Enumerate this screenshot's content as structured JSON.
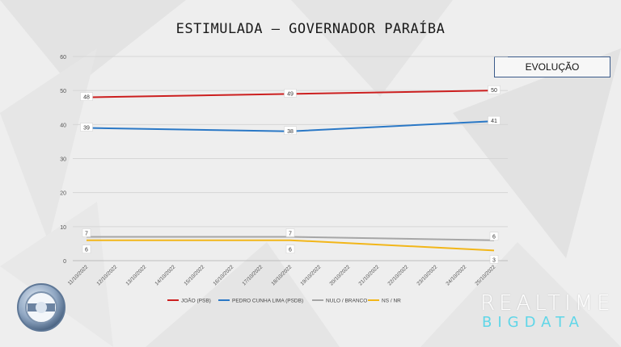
{
  "title": "ESTIMULADA – GOVERNADOR PARAÍBA",
  "badge": "EVOLUÇÃO",
  "brand": {
    "line1": "REALTIME",
    "line2": "BIGDATA"
  },
  "logo_icon": "record-tv-logo-icon",
  "chart_data": {
    "type": "line",
    "x": [
      "11/10/2022",
      "12/10/2022",
      "13/10/2022",
      "14/10/2022",
      "15/10/2022",
      "16/10/2022",
      "17/10/2022",
      "18/10/2022",
      "19/10/2022",
      "20/10/2022",
      "21/10/2022",
      "22/10/2022",
      "23/10/2022",
      "24/10/2022",
      "25/10/2022"
    ],
    "ylim": [
      0,
      60
    ],
    "yticks": [
      "0",
      "10",
      "20",
      "30",
      "40",
      "50",
      "60"
    ],
    "grid": true,
    "legend": "bottom",
    "series": [
      {
        "name": "JOÃO (PSB)",
        "color": "#cc1f1f",
        "points": [
          [
            0,
            48
          ],
          [
            7,
            49
          ],
          [
            14,
            50
          ]
        ],
        "labels": [
          "48",
          "49",
          "50"
        ],
        "label_pos": "center"
      },
      {
        "name": "PEDRO CUNHA LIMA (PSDB)",
        "color": "#2a78c6",
        "points": [
          [
            0,
            39
          ],
          [
            7,
            38
          ],
          [
            14,
            41
          ]
        ],
        "labels": [
          "39",
          "38",
          "41"
        ],
        "label_pos": "center"
      },
      {
        "name": "NULO / BRANCO",
        "color": "#a6a6a6",
        "points": [
          [
            0,
            7
          ],
          [
            7,
            7
          ],
          [
            14,
            6
          ]
        ],
        "labels": [
          "7",
          "7",
          "6"
        ],
        "label_pos": "above"
      },
      {
        "name": "NS / NR",
        "color": "#f2b619",
        "points": [
          [
            0,
            6
          ],
          [
            7,
            6
          ],
          [
            14,
            3
          ]
        ],
        "labels": [
          "6",
          "6",
          "3"
        ],
        "label_pos": "below"
      }
    ]
  }
}
